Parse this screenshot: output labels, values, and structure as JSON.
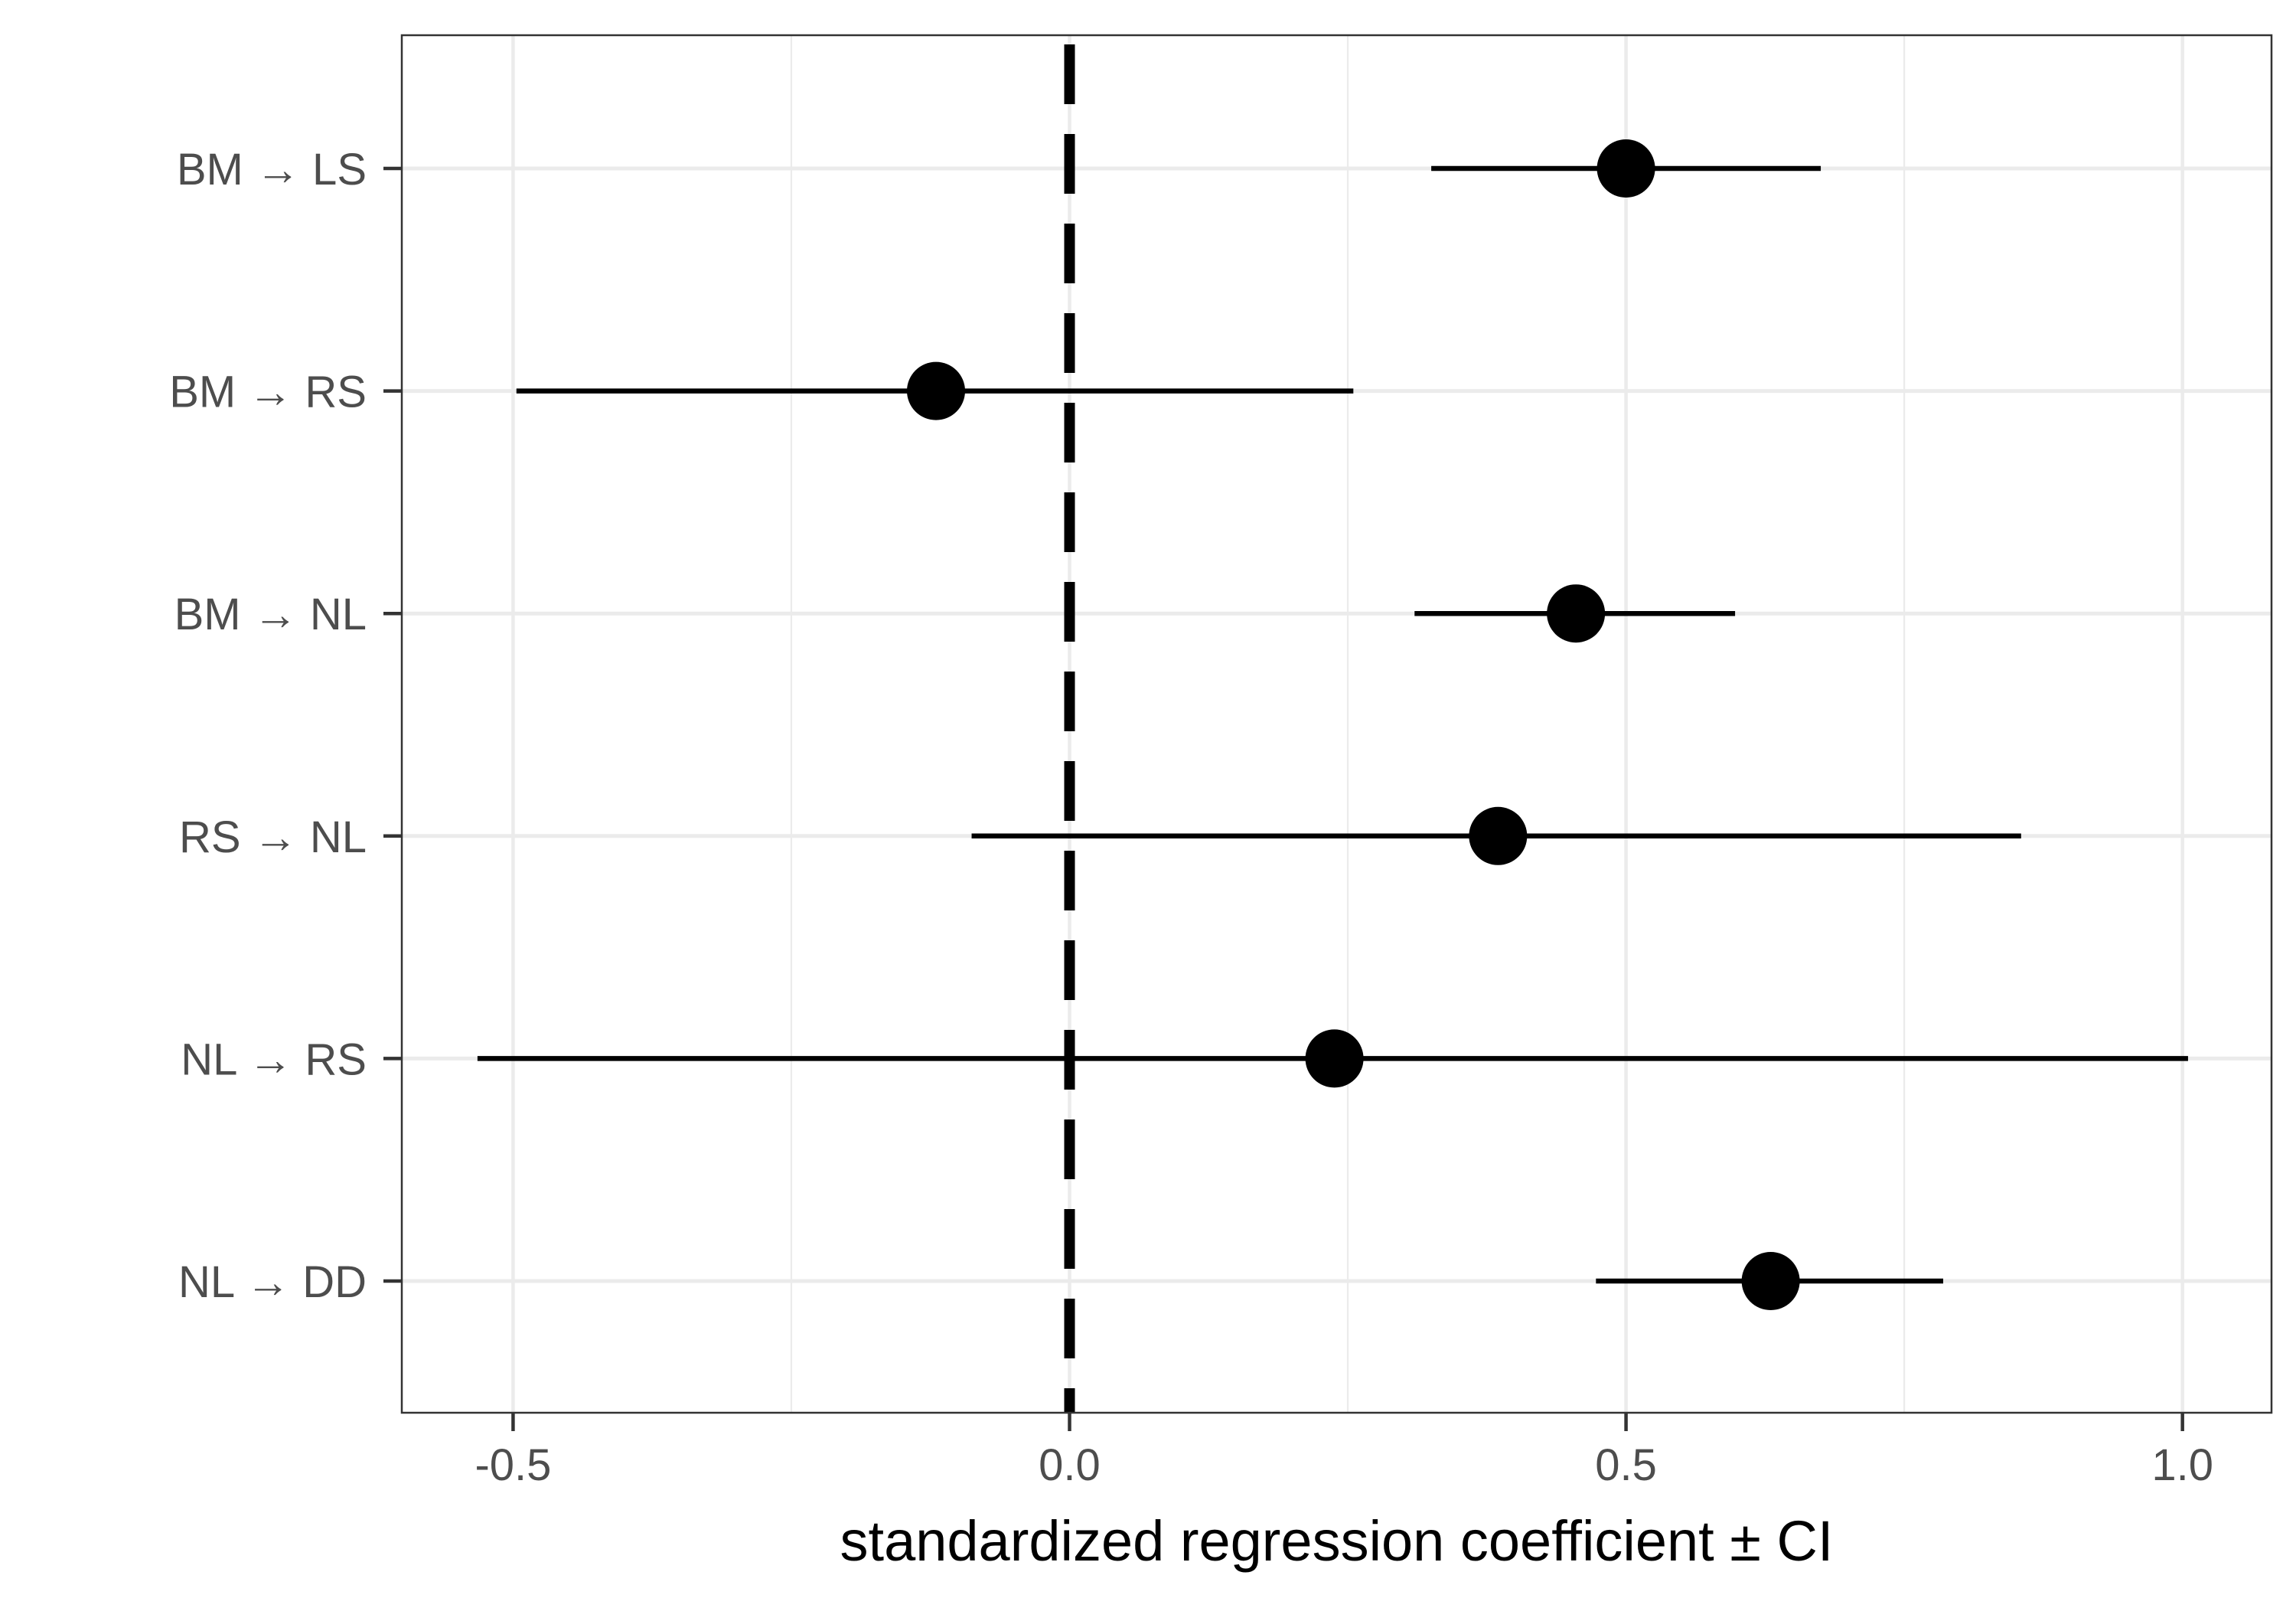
{
  "chart_data": {
    "type": "scatter",
    "subtype": "forest-plot",
    "title": "",
    "xlabel": "standardized regression coefficient ± CI",
    "ylabel": "",
    "xlim": [
      -0.6,
      1.08
    ],
    "xticks": [
      -0.5,
      0.0,
      0.5,
      1.0
    ],
    "xtick_labels": [
      "-0.5",
      "0.0",
      "0.5",
      "1.0"
    ],
    "reference_line": {
      "x": 0.0,
      "style": "dashed"
    },
    "grid": true,
    "legend": "none",
    "categories": [
      "BM → LS",
      "BM → RS",
      "BM → NL",
      "RS → NL",
      "NL → RS",
      "NL → DD"
    ],
    "estimates": [
      0.5,
      -0.12,
      0.455,
      0.385,
      0.238,
      0.63
    ],
    "ci_lower": [
      0.325,
      -0.497,
      0.31,
      -0.088,
      -0.532,
      0.473
    ],
    "ci_upper": [
      0.675,
      0.255,
      0.598,
      0.855,
      1.005,
      0.785
    ],
    "colors": {
      "point": "#000000",
      "grid": "#ebebeb",
      "tick_text": "#4d4d4d",
      "panel_border": "#333333"
    }
  }
}
